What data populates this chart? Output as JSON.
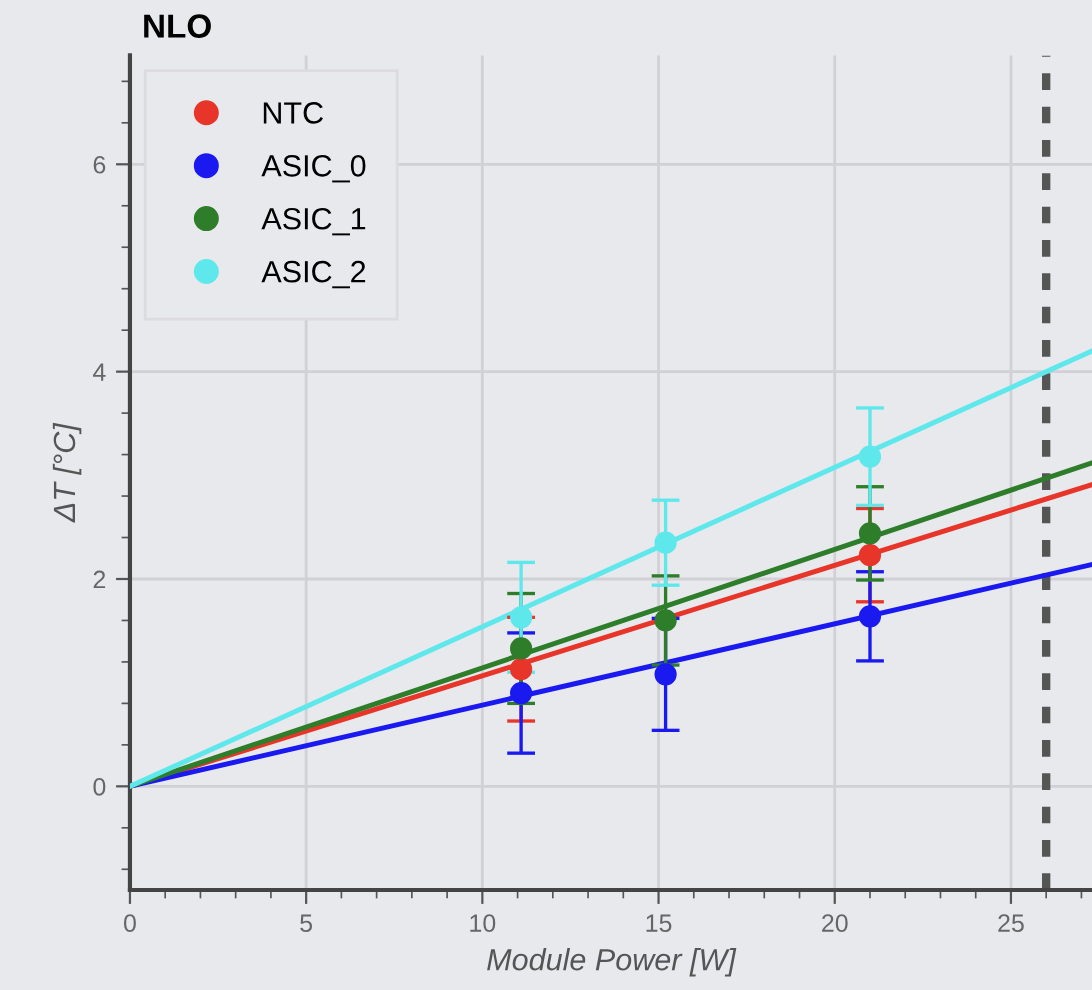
{
  "chart_data": {
    "type": "scatter",
    "title": "NLO",
    "xlabel": "Module Power [W]",
    "ylabel": "ΔT [°C]",
    "xlim": [
      0,
      27.3
    ],
    "ylim": [
      -1,
      7.05
    ],
    "xticks": [
      0,
      5,
      10,
      15,
      20,
      25
    ],
    "yticks": [
      0,
      2,
      4,
      6
    ],
    "grid": true,
    "legend": "top left",
    "marker": "circle",
    "series": [
      {
        "name": "NTC",
        "color": "#e8352a",
        "x": [
          11.1,
          15.2,
          21
        ],
        "values": [
          1.13,
          null,
          2.23
        ],
        "errors": [
          0.5,
          null,
          0.45
        ]
      },
      {
        "name": "ASIC_0",
        "color": "#1a1af0",
        "x": [
          11.1,
          15.2,
          21
        ],
        "values": [
          0.9,
          1.08,
          1.64
        ],
        "errors": [
          0.58,
          0.54,
          0.43
        ]
      },
      {
        "name": "ASIC_1",
        "color": "#2e7d2a",
        "x": [
          11.1,
          15.2,
          21
        ],
        "values": [
          1.33,
          1.6,
          2.44
        ],
        "errors": [
          0.53,
          0.43,
          0.45
        ]
      },
      {
        "name": "ASIC_2",
        "color": "#5ee8ec",
        "x": [
          11.1,
          15.2,
          21
        ],
        "values": [
          1.63,
          2.35,
          3.18
        ],
        "errors": [
          0.53,
          0.41,
          0.47
        ]
      },
      {
        "type": "line",
        "marker": "none",
        "color": "#e8352a",
        "x": [
          0,
          27.3
        ],
        "values": [
          0,
          2.91
        ]
      },
      {
        "type": "line",
        "marker": "none",
        "color": "#1a1af0",
        "x": [
          0,
          27.3
        ],
        "values": [
          0,
          2.14
        ]
      },
      {
        "type": "line",
        "marker": "none",
        "color": "#2e7d2a",
        "x": [
          0,
          27.3
        ],
        "values": [
          0,
          3.12
        ]
      },
      {
        "type": "line",
        "marker": "none",
        "color": "#5ee8ec",
        "x": [
          0,
          27.3
        ],
        "values": [
          0,
          4.2
        ]
      }
    ],
    "ref_lines": [
      {
        "axis": "x",
        "value": 26,
        "color": "#555555",
        "line_style": "dashed"
      }
    ]
  }
}
